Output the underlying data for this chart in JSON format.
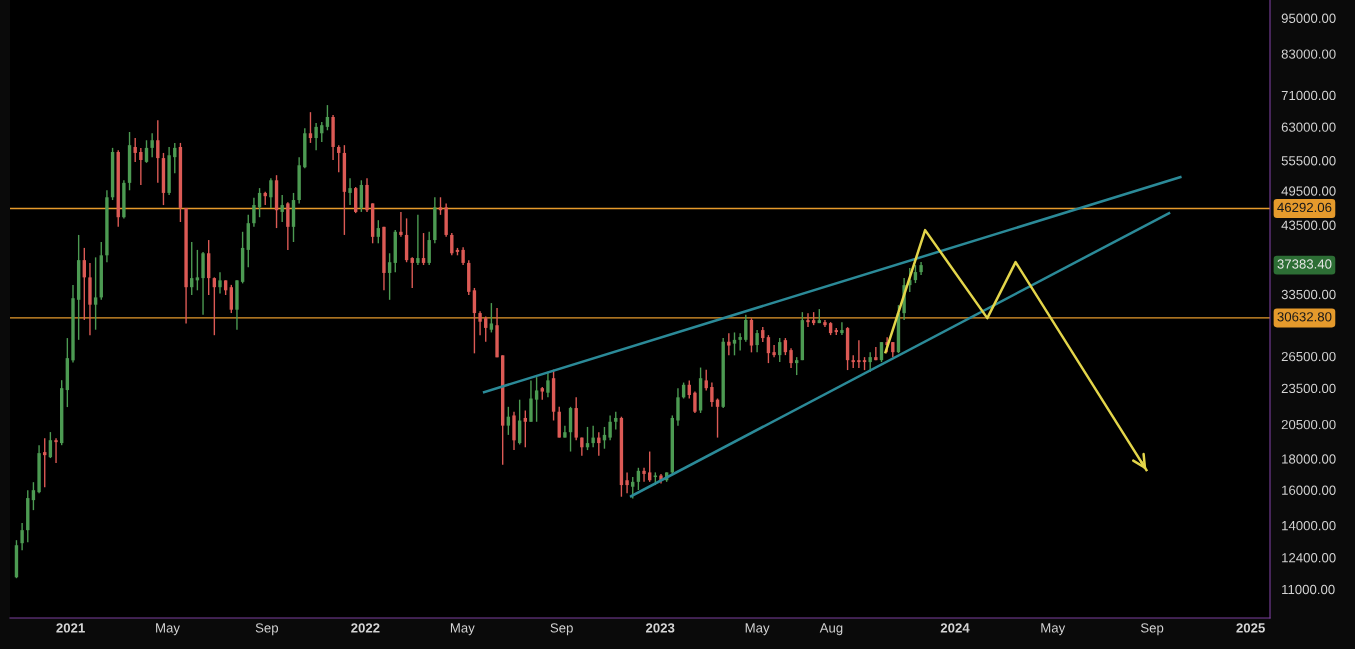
{
  "chart_data": {
    "type": "candlestick",
    "x": [
      "2020-10-26",
      "2020-11-02",
      "2020-11-09",
      "2020-11-16",
      "2020-11-23",
      "2020-11-30",
      "2020-12-07",
      "2020-12-14",
      "2020-12-21",
      "2020-12-28",
      "2021-01-04",
      "2021-01-11",
      "2021-01-18",
      "2021-01-25",
      "2021-02-01",
      "2021-02-08",
      "2021-02-15",
      "2021-02-22",
      "2021-03-01",
      "2021-03-08",
      "2021-03-15",
      "2021-03-22",
      "2021-03-29",
      "2021-04-05",
      "2021-04-12",
      "2021-04-19",
      "2021-04-26",
      "2021-05-03",
      "2021-05-10",
      "2021-05-17",
      "2021-05-24",
      "2021-05-31",
      "2021-06-07",
      "2021-06-14",
      "2021-06-21",
      "2021-06-28",
      "2021-07-05",
      "2021-07-12",
      "2021-07-19",
      "2021-07-26",
      "2021-08-02",
      "2021-08-09",
      "2021-08-16",
      "2021-08-23",
      "2021-08-30",
      "2021-09-06",
      "2021-09-13",
      "2021-09-20",
      "2021-09-27",
      "2021-10-04",
      "2021-10-11",
      "2021-10-18",
      "2021-10-25",
      "2021-11-01",
      "2021-11-08",
      "2021-11-15",
      "2021-11-22",
      "2021-11-29",
      "2021-12-06",
      "2021-12-13",
      "2021-12-20",
      "2021-12-27",
      "2022-01-03",
      "2022-01-10",
      "2022-01-17",
      "2022-01-24",
      "2022-01-31",
      "2022-02-07",
      "2022-02-14",
      "2022-02-21",
      "2022-02-28",
      "2022-03-07",
      "2022-03-14",
      "2022-03-21",
      "2022-03-28",
      "2022-04-04",
      "2022-04-11",
      "2022-04-18",
      "2022-04-25",
      "2022-05-02",
      "2022-05-09",
      "2022-05-16",
      "2022-05-23",
      "2022-05-30",
      "2022-06-06",
      "2022-06-13",
      "2022-06-20",
      "2022-06-27",
      "2022-07-04",
      "2022-07-11",
      "2022-07-18",
      "2022-07-25",
      "2022-08-01",
      "2022-08-08",
      "2022-08-15",
      "2022-08-22",
      "2022-08-29",
      "2022-09-05",
      "2022-09-12",
      "2022-09-19",
      "2022-09-26",
      "2022-10-03",
      "2022-10-10",
      "2022-10-17",
      "2022-10-24",
      "2022-10-31",
      "2022-11-07",
      "2022-11-14",
      "2022-11-21",
      "2022-11-28",
      "2022-12-05",
      "2022-12-12",
      "2022-12-19",
      "2022-12-26",
      "2023-01-02",
      "2023-01-09",
      "2023-01-16",
      "2023-01-23",
      "2023-01-30",
      "2023-02-06",
      "2023-02-13",
      "2023-02-20",
      "2023-02-27",
      "2023-03-06",
      "2023-03-13",
      "2023-03-20",
      "2023-03-27",
      "2023-04-03",
      "2023-04-10",
      "2023-04-17",
      "2023-04-24",
      "2023-05-01",
      "2023-05-08",
      "2023-05-15",
      "2023-05-22",
      "2023-05-29",
      "2023-06-05",
      "2023-06-12",
      "2023-06-19",
      "2023-06-26",
      "2023-07-03",
      "2023-07-10",
      "2023-07-17",
      "2023-07-24",
      "2023-07-31",
      "2023-08-07",
      "2023-08-14",
      "2023-08-21",
      "2023-08-28",
      "2023-09-04",
      "2023-09-11",
      "2023-09-18",
      "2023-09-25",
      "2023-10-02",
      "2023-10-09",
      "2023-10-16",
      "2023-10-23",
      "2023-10-30",
      "2023-11-06",
      "2023-11-13",
      "2023-11-20"
    ],
    "ohlc": [
      [
        11510,
        13240,
        11470,
        12990
      ],
      [
        13090,
        14120,
        12750,
        13750
      ],
      [
        13750,
        15990,
        13140,
        15520
      ],
      [
        15400,
        16480,
        14830,
        15990
      ],
      [
        15870,
        18950,
        15810,
        18390
      ],
      [
        18460,
        19460,
        16170,
        18250
      ],
      [
        18110,
        19910,
        18050,
        19310
      ],
      [
        19310,
        19460,
        17710,
        19170
      ],
      [
        19100,
        24220,
        18950,
        23500
      ],
      [
        23330,
        28390,
        21880,
        26320
      ],
      [
        26100,
        34700,
        25900,
        33000
      ],
      [
        32800,
        41900,
        28200,
        38100
      ],
      [
        38100,
        39900,
        30400,
        35700
      ],
      [
        35700,
        37700,
        28700,
        32200
      ],
      [
        32200,
        38500,
        29300,
        33100
      ],
      [
        33100,
        40800,
        32800,
        38800
      ],
      [
        38800,
        49600,
        37800,
        48300
      ],
      [
        48300,
        58200,
        47800,
        57300
      ],
      [
        57300,
        57700,
        43200,
        44800
      ],
      [
        44800,
        51500,
        44600,
        51000
      ],
      [
        51000,
        61800,
        49600,
        58800
      ],
      [
        58400,
        60400,
        55200,
        57100
      ],
      [
        57300,
        58200,
        50600,
        55600
      ],
      [
        55200,
        59900,
        55000,
        58200
      ],
      [
        58200,
        61500,
        56200,
        59900
      ],
      [
        59900,
        64600,
        51000,
        56000
      ],
      [
        56000,
        57100,
        46900,
        49100
      ],
      [
        49100,
        58400,
        48700,
        56600
      ],
      [
        56200,
        59300,
        52900,
        58200
      ],
      [
        58400,
        59300,
        44000,
        46400
      ],
      [
        46400,
        46400,
        30000,
        34400
      ],
      [
        34400,
        40800,
        33400,
        35600
      ],
      [
        35300,
        39600,
        34000,
        35700
      ],
      [
        35600,
        39300,
        31000,
        39100
      ],
      [
        39100,
        41100,
        33400,
        35600
      ],
      [
        35600,
        35700,
        28700,
        34400
      ],
      [
        34400,
        36400,
        33600,
        35300
      ],
      [
        35300,
        35300,
        33400,
        34000
      ],
      [
        34400,
        34700,
        31200,
        31600
      ],
      [
        31600,
        35300,
        29300,
        35300
      ],
      [
        35100,
        42400,
        34900,
        39900
      ],
      [
        39600,
        45200,
        37100,
        43800
      ],
      [
        43800,
        48200,
        43200,
        46900
      ],
      [
        46500,
        50000,
        44800,
        49100
      ],
      [
        49100,
        49300,
        46900,
        48500
      ],
      [
        48300,
        51900,
        46400,
        51500
      ],
      [
        51500,
        52500,
        43000,
        46000
      ],
      [
        45700,
        48700,
        44000,
        46900
      ],
      [
        47200,
        47400,
        39600,
        43200
      ],
      [
        43200,
        49100,
        40800,
        47800
      ],
      [
        47800,
        56200,
        47200,
        54500
      ],
      [
        54100,
        62700,
        53900,
        61500
      ],
      [
        61500,
        66600,
        59300,
        60400
      ],
      [
        60400,
        63900,
        57700,
        63000
      ],
      [
        61500,
        64200,
        59500,
        63400
      ],
      [
        63000,
        68400,
        62200,
        65400
      ],
      [
        65400,
        65900,
        55600,
        58400
      ],
      [
        58400,
        58800,
        53100,
        57100
      ],
      [
        57100,
        58800,
        41900,
        49300
      ],
      [
        49100,
        51900,
        46900,
        50000
      ],
      [
        50000,
        50200,
        45500,
        45700
      ],
      [
        46400,
        51500,
        45700,
        50600
      ],
      [
        50600,
        51900,
        45700,
        46000
      ],
      [
        47200,
        47200,
        40600,
        41600
      ],
      [
        41600,
        44300,
        40600,
        43000
      ],
      [
        43200,
        43200,
        34000,
        36300
      ],
      [
        36300,
        39100,
        32800,
        37800
      ],
      [
        37700,
        42700,
        36400,
        42400
      ],
      [
        42400,
        45700,
        41600,
        41900
      ],
      [
        41900,
        44600,
        37800,
        38100
      ],
      [
        38400,
        38500,
        34300,
        37700
      ],
      [
        37700,
        45200,
        37400,
        38400
      ],
      [
        38400,
        42200,
        37400,
        37700
      ],
      [
        37700,
        42400,
        37400,
        41100
      ],
      [
        41100,
        48300,
        40600,
        46500
      ],
      [
        46500,
        48300,
        45200,
        46000
      ],
      [
        46500,
        47200,
        41600,
        41900
      ],
      [
        41900,
        42200,
        38800,
        39100
      ],
      [
        39600,
        39900,
        38800,
        39300
      ],
      [
        39600,
        40000,
        37400,
        37700
      ],
      [
        37700,
        38100,
        33400,
        33800
      ],
      [
        34000,
        34300,
        26800,
        31200
      ],
      [
        31200,
        31400,
        28700,
        30200
      ],
      [
        30600,
        30800,
        28000,
        29500
      ],
      [
        29300,
        32400,
        29000,
        30000
      ],
      [
        29800,
        31800,
        26400,
        26400
      ],
      [
        26600,
        26600,
        17600,
        20400
      ],
      [
        20400,
        21900,
        19700,
        21100
      ],
      [
        21200,
        21500,
        18600,
        19300
      ],
      [
        19100,
        22500,
        19000,
        20800
      ],
      [
        21000,
        21600,
        18800,
        20700
      ],
      [
        20700,
        24200,
        20700,
        22600
      ],
      [
        22500,
        24500,
        20700,
        23300
      ],
      [
        23500,
        23600,
        22500,
        23200
      ],
      [
        23100,
        25000,
        22700,
        24200
      ],
      [
        24400,
        25200,
        20800,
        21500
      ],
      [
        21500,
        21900,
        19500,
        19500
      ],
      [
        19500,
        20400,
        19500,
        19900
      ],
      [
        19900,
        21900,
        18500,
        21800
      ],
      [
        21800,
        22700,
        19300,
        19500
      ],
      [
        19500,
        19500,
        18200,
        18800
      ],
      [
        18800,
        20300,
        18600,
        19100
      ],
      [
        19100,
        20400,
        18800,
        19500
      ],
      [
        19500,
        19900,
        18200,
        19100
      ],
      [
        19300,
        20300,
        18700,
        19700
      ],
      [
        19500,
        21200,
        19300,
        20700
      ],
      [
        20700,
        21500,
        20100,
        21000
      ],
      [
        21000,
        21100,
        15600,
        16300
      ],
      [
        16600,
        17100,
        15800,
        16300
      ],
      [
        16200,
        16800,
        15500,
        16500
      ],
      [
        16500,
        17400,
        16000,
        17200
      ],
      [
        17200,
        17400,
        16500,
        17000
      ],
      [
        17100,
        18500,
        16500,
        16600
      ],
      [
        16800,
        17100,
        16300,
        16900
      ],
      [
        16900,
        17000,
        16400,
        16600
      ],
      [
        16600,
        17100,
        16500,
        17100
      ],
      [
        17100,
        21200,
        17000,
        21000
      ],
      [
        20800,
        23500,
        20400,
        22700
      ],
      [
        22700,
        24000,
        22600,
        23800
      ],
      [
        23800,
        24200,
        22600,
        22900
      ],
      [
        23100,
        23200,
        21400,
        21500
      ],
      [
        21600,
        25400,
        21400,
        24400
      ],
      [
        24200,
        25200,
        23300,
        23500
      ],
      [
        23600,
        24000,
        21900,
        22300
      ],
      [
        22500,
        22600,
        19500,
        21900
      ],
      [
        21900,
        28400,
        21800,
        28000
      ],
      [
        28000,
        28900,
        26600,
        27600
      ],
      [
        27800,
        29000,
        26600,
        28200
      ],
      [
        28200,
        28900,
        27100,
        28500
      ],
      [
        28200,
        31000,
        28000,
        30400
      ],
      [
        30400,
        30600,
        26900,
        27600
      ],
      [
        27650,
        29260,
        26920,
        28930
      ],
      [
        29260,
        29590,
        27960,
        28390
      ],
      [
        28490,
        28710,
        25830,
        26820
      ],
      [
        26920,
        27650,
        26420,
        26620
      ],
      [
        26620,
        28390,
        25930,
        27960
      ],
      [
        28170,
        28390,
        26620,
        26920
      ],
      [
        27130,
        27330,
        25350,
        25830
      ],
      [
        25830,
        26420,
        24690,
        26120
      ],
      [
        26120,
        31310,
        26120,
        30380
      ],
      [
        30380,
        31190,
        29590,
        30150
      ],
      [
        30380,
        31310,
        29810,
        30040
      ],
      [
        30040,
        31670,
        30040,
        30380
      ],
      [
        30150,
        30380,
        29590,
        29810
      ],
      [
        30040,
        30150,
        28710,
        28930
      ],
      [
        29260,
        29480,
        28710,
        29040
      ],
      [
        28930,
        30150,
        28710,
        29260
      ],
      [
        29480,
        29590,
        25160,
        26120
      ],
      [
        26120,
        26620,
        25350,
        25930
      ],
      [
        26120,
        28170,
        25350,
        25930
      ],
      [
        26120,
        26420,
        25160,
        25930
      ],
      [
        25930,
        26920,
        24970,
        26420
      ],
      [
        26420,
        27440,
        26120,
        26120
      ],
      [
        26120,
        27960,
        25930,
        27960
      ],
      [
        27960,
        28490,
        26920,
        27650
      ],
      [
        27960,
        27960,
        26420,
        26920
      ],
      [
        26920,
        32150,
        26820,
        31190
      ],
      [
        31190,
        35600,
        30380,
        34670
      ],
      [
        34670,
        36970,
        33770,
        35330
      ],
      [
        35330,
        37390,
        34940,
        36420
      ],
      [
        36420,
        37820,
        36010,
        37390
      ]
    ],
    "series": [
      {
        "type": "line",
        "x": [
          "2022-05-28",
          "2024-10-06"
        ],
        "values": [
          23150,
          52130
        ],
        "color": "#2b8a98"
      },
      {
        "type": "line",
        "x": [
          "2022-11-26",
          "2024-09-22"
        ],
        "values": [
          15630,
          45500
        ],
        "color": "#2b8a98"
      },
      {
        "type": "line",
        "x": [
          "2023-10-07",
          "2023-11-25",
          "2024-02-10",
          "2024-03-16",
          "2024-08-25"
        ],
        "values": [
          26920,
          42670,
          30610,
          37820,
          17250
        ],
        "color": "#e3d54a"
      }
    ],
    "log": true,
    "grid": false,
    "xlim": [
      "2020-10-18",
      "2025-01-25"
    ],
    "xticks": [
      {
        "value": "2021-01-01",
        "label": "2021"
      },
      {
        "value": "2021-05-01",
        "label": "May"
      },
      {
        "value": "2021-09-01",
        "label": "Sep"
      },
      {
        "value": "2022-01-01",
        "label": "2022"
      },
      {
        "value": "2022-05-01",
        "label": "May"
      },
      {
        "value": "2022-09-01",
        "label": "Sep"
      },
      {
        "value": "2023-01-01",
        "label": "2023"
      },
      {
        "value": "2023-05-01",
        "label": "May"
      },
      {
        "value": "2023-08-01",
        "label": "Aug"
      },
      {
        "value": "2024-01-01",
        "label": "2024"
      },
      {
        "value": "2024-05-01",
        "label": "May"
      },
      {
        "value": "2024-09-01",
        "label": "Sep"
      },
      {
        "value": "2025-01-01",
        "label": "2025"
      }
    ],
    "ylim": [
      9870,
      101700
    ],
    "yticks": [
      {
        "value": 11000,
        "label": "11000.00"
      },
      {
        "value": 12400,
        "label": "12400.00"
      },
      {
        "value": 14000,
        "label": "14000.00"
      },
      {
        "value": 16000,
        "label": "16000.00"
      },
      {
        "value": 18000,
        "label": "18000.00"
      },
      {
        "value": 20500,
        "label": "20500.00"
      },
      {
        "value": 23500,
        "label": "23500.00"
      },
      {
        "value": 26500,
        "label": "26500.00"
      },
      {
        "value": 33500,
        "label": "33500.00"
      },
      {
        "value": 43500,
        "label": "43500.00"
      },
      {
        "value": 49500,
        "label": "49500.00"
      },
      {
        "value": 55500,
        "label": "55500.00"
      },
      {
        "value": 63000,
        "label": "63000.00"
      },
      {
        "value": 71000,
        "label": "71000.00"
      },
      {
        "value": 83000,
        "label": "83000.00"
      },
      {
        "value": 95000,
        "label": "95000.00"
      }
    ],
    "ref_lines": [
      {
        "axis": "y",
        "value": 46292.06,
        "label": "46292.06",
        "color": "#e59a2c"
      },
      {
        "axis": "y",
        "value": 30632.8,
        "label": "30632.80",
        "color": "#e59a2c"
      }
    ],
    "annotations": [
      "37383.40"
    ]
  }
}
